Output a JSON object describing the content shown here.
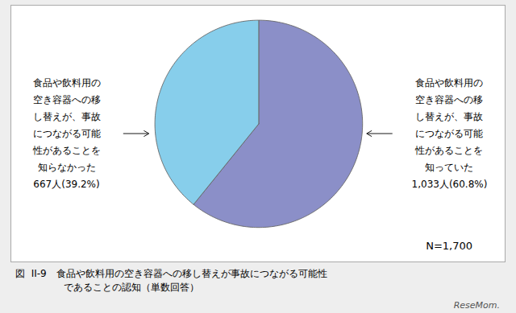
{
  "chart_data": {
    "type": "pie",
    "categories": [
      "知っていた",
      "知らなかった"
    ],
    "values": [
      60.8,
      39.2
    ],
    "colors": [
      "#8b8fc8",
      "#87ceeb"
    ],
    "annotations": {
      "left": [
        "食品や飲料用の",
        "空き容器への移",
        "し替えが、事故",
        "につながる可能",
        "性があることを",
        "知らなかった",
        "667人(39.2%)"
      ],
      "right": [
        "食品や飲料用の",
        "空き容器への移",
        "し替えが、事故",
        "につながる可能",
        "性があることを",
        "知っていた",
        "1,033人(60.8%)"
      ],
      "n_label": "N=1,700",
      "source": "ReseMom."
    },
    "caption": [
      "図  II-9　食品や飲料用の空き容器への移し替えが事故につながる可能性",
      "　　　　　であることの認知（単数回答）"
    ]
  }
}
